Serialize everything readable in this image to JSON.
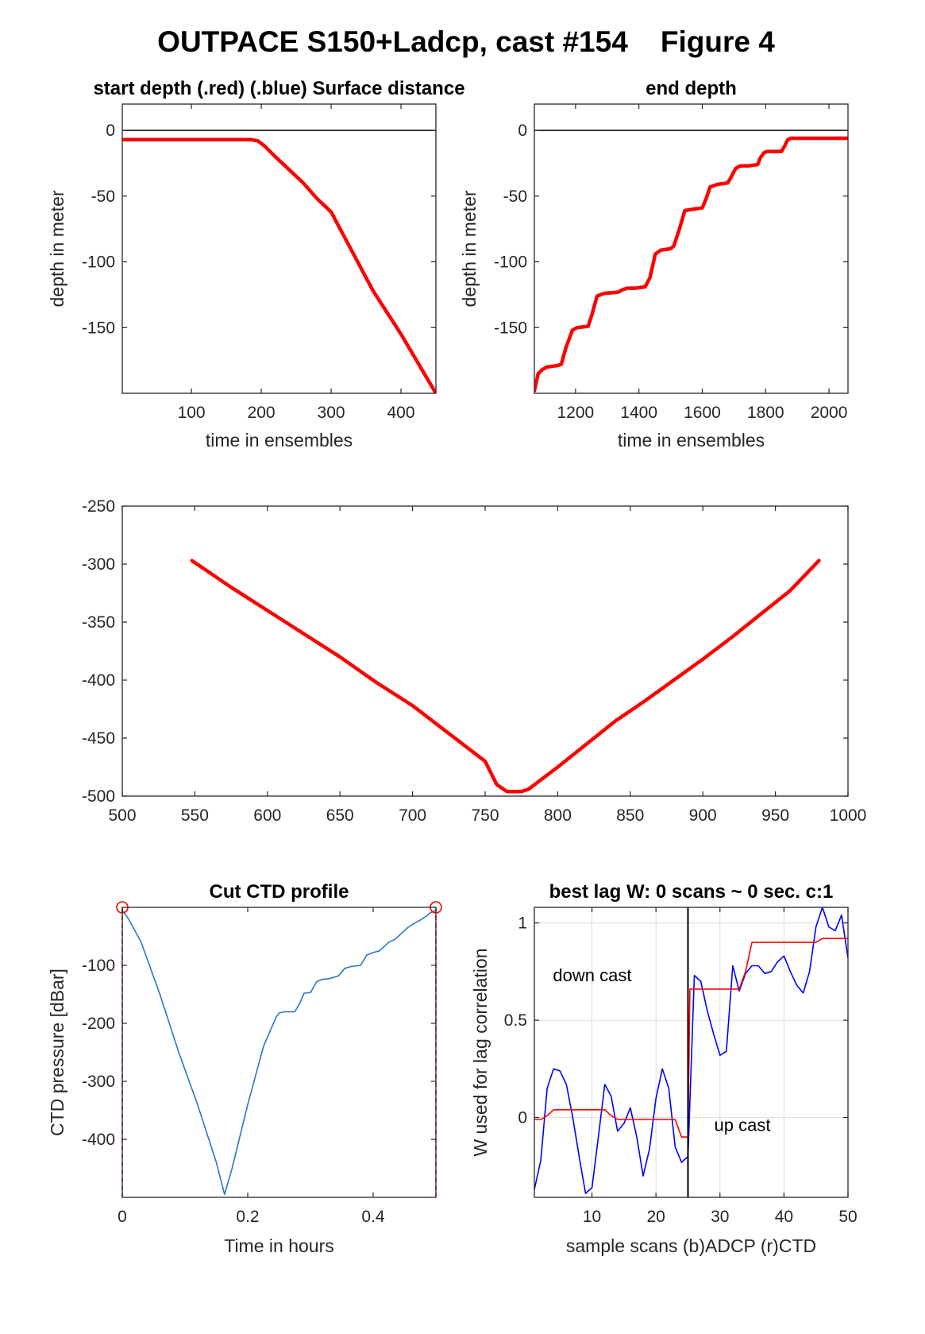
{
  "figure": {
    "title": "OUTPACE S150+Ladcp, cast #154    Figure 4"
  },
  "chart_data": [
    {
      "id": "start",
      "type": "line",
      "title": "start depth (.red) (.blue) Surface distance",
      "xlabel": "time in ensembles",
      "ylabel": "depth in meter",
      "xlim": [
        1,
        450
      ],
      "ylim": [
        -200,
        20
      ],
      "xticks": [
        100,
        200,
        300,
        400
      ],
      "yticks": [
        0,
        -50,
        -100,
        -150
      ],
      "grid": false,
      "reference_line_y": 0,
      "series": [
        {
          "color": "#ff0000",
          "x": [
            1,
            60,
            120,
            185,
            195,
            205,
            220,
            240,
            260,
            280,
            300,
            330,
            360,
            400,
            430,
            450
          ],
          "y": [
            -7,
            -7,
            -7,
            -7,
            -8,
            -12,
            -20,
            -30,
            -40,
            -52,
            -62,
            -92,
            -122,
            -155,
            -182,
            -200
          ]
        }
      ]
    },
    {
      "id": "end",
      "type": "line",
      "title": "end depth",
      "xlabel": "time in ensembles",
      "ylabel": "depth in meter",
      "xlim": [
        1070,
        2060
      ],
      "ylim": [
        -200,
        20
      ],
      "xticks": [
        1200,
        1400,
        1600,
        1800,
        2000
      ],
      "yticks": [
        0,
        -50,
        -100,
        -150
      ],
      "grid": false,
      "reference_line_y": 0,
      "series": [
        {
          "color": "#ff0000",
          "x": [
            1070,
            1082,
            1095,
            1110,
            1140,
            1155,
            1170,
            1190,
            1205,
            1240,
            1252,
            1268,
            1290,
            1335,
            1350,
            1365,
            1390,
            1420,
            1435,
            1452,
            1470,
            1500,
            1510,
            1528,
            1545,
            1570,
            1600,
            1612,
            1625,
            1650,
            1680,
            1690,
            1705,
            1720,
            1745,
            1775,
            1783,
            1795,
            1805,
            1820,
            1850,
            1860,
            1870,
            1880,
            1900,
            1920,
            1932,
            1942,
            1960,
            2000,
            2060
          ],
          "y": [
            -198,
            -185,
            -182,
            -180,
            -179,
            -178,
            -165,
            -152,
            -150,
            -149,
            -140,
            -126,
            -124,
            -123,
            -121,
            -120,
            -120,
            -119,
            -112,
            -94,
            -91,
            -90,
            -88,
            -75,
            -61,
            -60,
            -59,
            -52,
            -43,
            -41,
            -40,
            -36,
            -29,
            -27,
            -27,
            -26,
            -21,
            -17,
            -16,
            -16,
            -16,
            -12,
            -7,
            -6,
            -6,
            -6,
            -6,
            -6,
            -6,
            -6,
            -6
          ]
        }
      ]
    },
    {
      "id": "middle",
      "type": "line",
      "title": "",
      "xlabel": "",
      "ylabel": "",
      "xlim": [
        500,
        1000
      ],
      "ylim": [
        -500,
        -250
      ],
      "xticks": [
        500,
        550,
        600,
        650,
        700,
        750,
        800,
        850,
        900,
        950,
        1000
      ],
      "yticks": [
        -250,
        -300,
        -350,
        -400,
        -450,
        -500
      ],
      "grid": false,
      "series": [
        {
          "color": "#ff0000",
          "x": [
            548,
            575,
            600,
            625,
            650,
            675,
            700,
            725,
            750,
            758,
            765,
            775,
            780,
            800,
            820,
            840,
            860,
            880,
            900,
            920,
            940,
            960,
            980
          ],
          "y": [
            -297,
            -320,
            -340,
            -360,
            -380,
            -402,
            -422,
            -446,
            -470,
            -490,
            -496,
            -496,
            -494,
            -475,
            -455,
            -435,
            -418,
            -400,
            -382,
            -363,
            -343,
            -323,
            -297
          ]
        }
      ]
    },
    {
      "id": "ctd",
      "type": "line",
      "title": "Cut CTD profile",
      "xlabel": "Time in hours",
      "ylabel": "CTD pressure [dBar]",
      "xlim": [
        0,
        0.5
      ],
      "ylim": [
        -500,
        0
      ],
      "xticks": [
        0,
        0.2,
        0.4
      ],
      "yticks": [
        -100,
        -200,
        -300,
        -400
      ],
      "grid": false,
      "series": [
        {
          "color": "#2877c7",
          "x": [
            0,
            0.01,
            0.03,
            0.06,
            0.09,
            0.12,
            0.15,
            0.163,
            0.175,
            0.2,
            0.225,
            0.245,
            0.25,
            0.26,
            0.275,
            0.283,
            0.29,
            0.3,
            0.31,
            0.32,
            0.33,
            0.345,
            0.355,
            0.365,
            0.38,
            0.39,
            0.4,
            0.41,
            0.425,
            0.435,
            0.445,
            0.455,
            0.465,
            0.475,
            0.485,
            0.49,
            0.5
          ],
          "y": [
            -5,
            -20,
            -60,
            -150,
            -250,
            -340,
            -440,
            -495,
            -450,
            -340,
            -240,
            -190,
            -182,
            -180,
            -180,
            -165,
            -148,
            -147,
            -128,
            -124,
            -123,
            -118,
            -105,
            -102,
            -100,
            -82,
            -78,
            -75,
            -60,
            -55,
            -45,
            -35,
            -28,
            -22,
            -15,
            -10,
            -5
          ]
        }
      ],
      "markers": [
        {
          "x": 0,
          "y": 0,
          "color": "#ff0000"
        },
        {
          "x": 0.5,
          "y": 0,
          "color": "#ff0000"
        }
      ],
      "vlines": [
        0,
        0.5
      ]
    },
    {
      "id": "lag",
      "type": "line",
      "title": "best lag W: 0 scans ~ 0 sec.  c:1",
      "xlabel": "sample scans (b)ADCP (r)CTD",
      "ylabel": "W used for lag correlation",
      "xlim": [
        1,
        50
      ],
      "ylim": [
        -0.41,
        1.08
      ],
      "xticks": [
        10,
        20,
        30,
        40,
        50
      ],
      "yticks": [
        0,
        0.5,
        1
      ],
      "grid": true,
      "vline_x": 25,
      "annotations": [
        {
          "text": "down cast",
          "x": 3.9,
          "y": 0.7
        },
        {
          "text": "up cast",
          "x": 29.1,
          "y": -0.07
        }
      ],
      "series": [
        {
          "name": "ADCP",
          "color": "#0000ff",
          "x": [
            1,
            2,
            3,
            4,
            5,
            6,
            7,
            8,
            9,
            10,
            11,
            12,
            13,
            14,
            15,
            16,
            17,
            18,
            19,
            20,
            21,
            22,
            23,
            24,
            25,
            26,
            27,
            28,
            29,
            30,
            31,
            32,
            33,
            34,
            35,
            36,
            37,
            38,
            39,
            40,
            41,
            42,
            43,
            44,
            45,
            46,
            47,
            48,
            49,
            50
          ],
          "y": [
            -0.37,
            -0.22,
            0.15,
            0.25,
            0.24,
            0.17,
            0.0,
            -0.2,
            -0.39,
            -0.36,
            -0.1,
            0.17,
            0.11,
            -0.07,
            -0.03,
            0.05,
            -0.1,
            -0.3,
            -0.16,
            0.1,
            0.25,
            0.15,
            -0.15,
            -0.23,
            -0.2,
            0.73,
            0.7,
            0.55,
            0.43,
            0.32,
            0.34,
            0.78,
            0.65,
            0.74,
            0.78,
            0.78,
            0.74,
            0.75,
            0.8,
            0.83,
            0.75,
            0.68,
            0.64,
            0.75,
            0.98,
            1.08,
            0.98,
            0.96,
            1.04,
            0.82
          ]
        },
        {
          "name": "CTD",
          "color": "#ff0000",
          "x": [
            1,
            2,
            3,
            4,
            12,
            13,
            14,
            23,
            24,
            25,
            25.3,
            26,
            33,
            34,
            35,
            45,
            46,
            50
          ],
          "y": [
            -0.01,
            -0.01,
            0.01,
            0.04,
            0.04,
            0.01,
            -0.01,
            -0.01,
            -0.1,
            -0.1,
            0.66,
            0.66,
            0.66,
            0.75,
            0.9,
            0.9,
            0.92,
            0.92
          ]
        }
      ]
    }
  ]
}
